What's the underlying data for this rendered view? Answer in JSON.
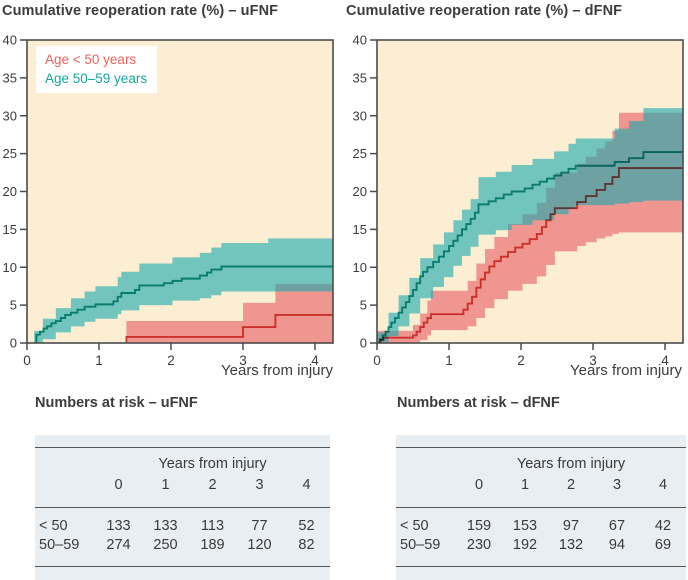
{
  "colors": {
    "plot_bg": "#FBEED2",
    "axis": "#4B4B4B",
    "text": "#3C3C3C",
    "table_bg": "#E9EEF3",
    "teal_line": "#12A096",
    "red_line": "#D8534B",
    "teal_band": "rgba(23,170,174,0.60)",
    "red_band": "rgba(230,62,79,0.50)",
    "legend_red": "#E8635A",
    "legend_teal": "#13A89E"
  },
  "chart_data": [
    {
      "type": "line",
      "title": "Cumulative reoperation rate (%) – uFNF",
      "xlabel": "Years from injury",
      "ylabel": "Cumulative reoperation rate (%)",
      "xlim": [
        0,
        4.25
      ],
      "ylim": [
        0,
        40
      ],
      "xticks": [
        "0",
        "1",
        "2",
        "3",
        "4"
      ],
      "yticks": [
        "0",
        "5",
        "10",
        "15",
        "20",
        "25",
        "30",
        "35",
        "40"
      ],
      "grid": false,
      "legend_position": "top-left",
      "legend": [
        {
          "label": "Age < 50 years",
          "color": "#E8635A"
        },
        {
          "label": "Age 50–59 years",
          "color": "#13A89E"
        }
      ],
      "series": [
        {
          "name": "Age < 50 years",
          "key": "under50",
          "line_color": "#D8534B",
          "band_color": "rgba(230,62,79,0.50)",
          "steps": [
            [
              1.38,
              0
            ],
            [
              1.38,
              0.8
            ],
            [
              3.0,
              2.1
            ],
            [
              3.45,
              3.7
            ]
          ],
          "band": [
            [
              1.38,
              0,
              2.9
            ],
            [
              3.0,
              0,
              5.3
            ],
            [
              3.45,
              0,
              7.8
            ]
          ]
        },
        {
          "name": "Age 50–59 years",
          "key": "age50_59",
          "line_color": "#12A096",
          "band_color": "rgba(23,170,174,0.60)",
          "steps": [
            [
              0.1,
              0
            ],
            [
              0.13,
              1.1
            ],
            [
              0.18,
              1.5
            ],
            [
              0.23,
              1.9
            ],
            [
              0.28,
              2.2
            ],
            [
              0.34,
              2.6
            ],
            [
              0.4,
              2.9
            ],
            [
              0.47,
              3.3
            ],
            [
              0.53,
              3.7
            ],
            [
              0.61,
              4.0
            ],
            [
              0.7,
              4.4
            ],
            [
              0.8,
              4.8
            ],
            [
              0.95,
              5.1
            ],
            [
              1.2,
              5.5
            ],
            [
              1.26,
              6.1
            ],
            [
              1.31,
              6.6
            ],
            [
              1.5,
              7.0
            ],
            [
              1.56,
              7.6
            ],
            [
              1.9,
              7.9
            ],
            [
              2.02,
              8.2
            ],
            [
              2.15,
              8.5
            ],
            [
              2.4,
              8.9
            ],
            [
              2.5,
              9.3
            ],
            [
              2.56,
              9.7
            ],
            [
              2.7,
              10.1
            ]
          ],
          "band": [
            [
              0.1,
              0,
              1.6
            ],
            [
              0.22,
              0.5,
              3.2
            ],
            [
              0.4,
              1.4,
              4.6
            ],
            [
              0.61,
              2.2,
              5.9
            ],
            [
              0.8,
              2.8,
              6.8
            ],
            [
              0.95,
              3.2,
              7.5
            ],
            [
              1.26,
              3.8,
              8.7
            ],
            [
              1.31,
              4.3,
              9.4
            ],
            [
              1.56,
              5.0,
              10.5
            ],
            [
              2.02,
              5.6,
              11.3
            ],
            [
              2.4,
              5.9,
              11.9
            ],
            [
              2.56,
              6.3,
              12.6
            ],
            [
              2.7,
              6.8,
              13.2
            ],
            [
              3.35,
              6.8,
              13.8
            ]
          ]
        }
      ]
    },
    {
      "type": "line",
      "title": "Cumulative reoperation rate (%) – dFNF",
      "xlabel": "Years from injury",
      "ylabel": "Cumulative reoperation rate (%)",
      "xlim": [
        0,
        4.25
      ],
      "ylim": [
        0,
        40
      ],
      "xticks": [
        "0",
        "1",
        "2",
        "3",
        "4"
      ],
      "yticks": [
        "0",
        "5",
        "10",
        "15",
        "20",
        "25",
        "30",
        "35",
        "40"
      ],
      "grid": false,
      "legend_position": "none",
      "series": [
        {
          "name": "Age < 50 years",
          "key": "under50",
          "line_color": "#D8534B",
          "band_color": "rgba(230,62,79,0.50)",
          "steps": [
            [
              0,
              0
            ],
            [
              0.05,
              0.4
            ],
            [
              0.09,
              0.7
            ],
            [
              0.5,
              1.0
            ],
            [
              0.55,
              1.5
            ],
            [
              0.6,
              2.1
            ],
            [
              0.65,
              2.7
            ],
            [
              0.7,
              3.3
            ],
            [
              0.75,
              3.8
            ],
            [
              1.2,
              4.4
            ],
            [
              1.26,
              5.2
            ],
            [
              1.32,
              6.1
            ],
            [
              1.38,
              7.3
            ],
            [
              1.44,
              8.4
            ],
            [
              1.5,
              9.3
            ],
            [
              1.56,
              10.1
            ],
            [
              1.63,
              10.8
            ],
            [
              1.72,
              11.4
            ],
            [
              1.82,
              12.0
            ],
            [
              1.92,
              12.6
            ],
            [
              2.02,
              13.1
            ],
            [
              2.12,
              13.7
            ],
            [
              2.22,
              14.4
            ],
            [
              2.29,
              15.3
            ],
            [
              2.35,
              16.2
            ],
            [
              2.41,
              17.0
            ],
            [
              2.47,
              17.8
            ],
            [
              2.78,
              18.6
            ],
            [
              2.9,
              19.4
            ],
            [
              3.05,
              20.2
            ],
            [
              3.17,
              21.0
            ],
            [
              3.27,
              21.9
            ],
            [
              3.36,
              23.1
            ]
          ],
          "band": [
            [
              0,
              0,
              1.6
            ],
            [
              0.5,
              0.1,
              2.4
            ],
            [
              0.6,
              0.4,
              3.9
            ],
            [
              0.7,
              1.0,
              5.6
            ],
            [
              0.75,
              1.7,
              6.9
            ],
            [
              1.26,
              2.2,
              8.2
            ],
            [
              1.38,
              3.3,
              10.5
            ],
            [
              1.5,
              4.6,
              12.4
            ],
            [
              1.63,
              5.8,
              14.0
            ],
            [
              1.82,
              6.9,
              15.7
            ],
            [
              2.02,
              7.8,
              17.0
            ],
            [
              2.22,
              8.8,
              18.5
            ],
            [
              2.35,
              10.3,
              20.5
            ],
            [
              2.47,
              12.1,
              22.5
            ],
            [
              2.78,
              12.8,
              23.7
            ],
            [
              2.9,
              13.3,
              24.6
            ],
            [
              3.05,
              13.8,
              25.7
            ],
            [
              3.17,
              14.1,
              26.6
            ],
            [
              3.27,
              14.4,
              28.0
            ],
            [
              3.36,
              14.6,
              30.4
            ]
          ]
        },
        {
          "name": "Age 50–59 years",
          "key": "age50_59",
          "line_color": "#12A096",
          "band_color": "rgba(23,170,174,0.60)",
          "steps": [
            [
              0,
              0
            ],
            [
              0.04,
              0.5
            ],
            [
              0.08,
              1.0
            ],
            [
              0.12,
              1.5
            ],
            [
              0.16,
              2.1
            ],
            [
              0.2,
              2.7
            ],
            [
              0.25,
              3.3
            ],
            [
              0.3,
              4.0
            ],
            [
              0.35,
              4.7
            ],
            [
              0.4,
              5.4
            ],
            [
              0.45,
              6.2
            ],
            [
              0.5,
              7.0
            ],
            [
              0.55,
              7.9
            ],
            [
              0.6,
              8.8
            ],
            [
              0.64,
              9.4
            ],
            [
              0.7,
              10.0
            ],
            [
              0.78,
              10.7
            ],
            [
              0.86,
              11.4
            ],
            [
              0.93,
              12.1
            ],
            [
              1.0,
              12.8
            ],
            [
              1.06,
              13.5
            ],
            [
              1.12,
              14.2
            ],
            [
              1.18,
              15.0
            ],
            [
              1.24,
              15.7
            ],
            [
              1.3,
              16.4
            ],
            [
              1.36,
              17.2
            ],
            [
              1.41,
              18.3
            ],
            [
              1.55,
              18.7
            ],
            [
              1.65,
              19.1
            ],
            [
              1.76,
              19.6
            ],
            [
              1.87,
              20.0
            ],
            [
              2.05,
              20.4
            ],
            [
              2.16,
              20.9
            ],
            [
              2.26,
              21.3
            ],
            [
              2.36,
              21.7
            ],
            [
              2.46,
              22.1
            ],
            [
              2.56,
              22.5
            ],
            [
              2.66,
              23.0
            ],
            [
              2.76,
              23.4
            ],
            [
              3.3,
              23.9
            ],
            [
              3.5,
              24.4
            ],
            [
              3.7,
              25.2
            ]
          ],
          "band": [
            [
              0,
              0,
              1.4
            ],
            [
              0.16,
              0.9,
              4.0
            ],
            [
              0.3,
              2.2,
              6.3
            ],
            [
              0.45,
              3.9,
              8.6
            ],
            [
              0.6,
              5.9,
              11.2
            ],
            [
              0.78,
              7.4,
              13.0
            ],
            [
              0.93,
              8.7,
              14.6
            ],
            [
              1.06,
              10.2,
              16.2
            ],
            [
              1.18,
              11.5,
              17.6
            ],
            [
              1.3,
              12.7,
              19.0
            ],
            [
              1.41,
              14.3,
              21.9
            ],
            [
              1.65,
              14.9,
              22.6
            ],
            [
              1.87,
              15.6,
              23.5
            ],
            [
              2.16,
              16.2,
              24.3
            ],
            [
              2.46,
              17.0,
              25.3
            ],
            [
              2.66,
              17.7,
              26.3
            ],
            [
              2.76,
              18.2,
              27.0
            ],
            [
              3.3,
              18.4,
              28.3
            ],
            [
              3.5,
              18.6,
              29.3
            ],
            [
              3.7,
              18.8,
              31.0
            ]
          ]
        }
      ]
    }
  ],
  "tables": [
    {
      "title": "Numbers at risk – uFNF",
      "header": "Years from injury",
      "columns": [
        "0",
        "1",
        "2",
        "3",
        "4"
      ],
      "rows": [
        {
          "label": "< 50",
          "values": [
            "133",
            "133",
            "113",
            "77",
            "52"
          ]
        },
        {
          "label": "50–59",
          "values": [
            "274",
            "250",
            "189",
            "120",
            "82"
          ]
        }
      ]
    },
    {
      "title": "Numbers at risk – dFNF",
      "header": "Years from injury",
      "columns": [
        "0",
        "1",
        "2",
        "3",
        "4"
      ],
      "rows": [
        {
          "label": "< 50",
          "values": [
            "159",
            "153",
            "97",
            "67",
            "42"
          ]
        },
        {
          "label": "50–59",
          "values": [
            "230",
            "192",
            "132",
            "94",
            "69"
          ]
        }
      ]
    }
  ]
}
